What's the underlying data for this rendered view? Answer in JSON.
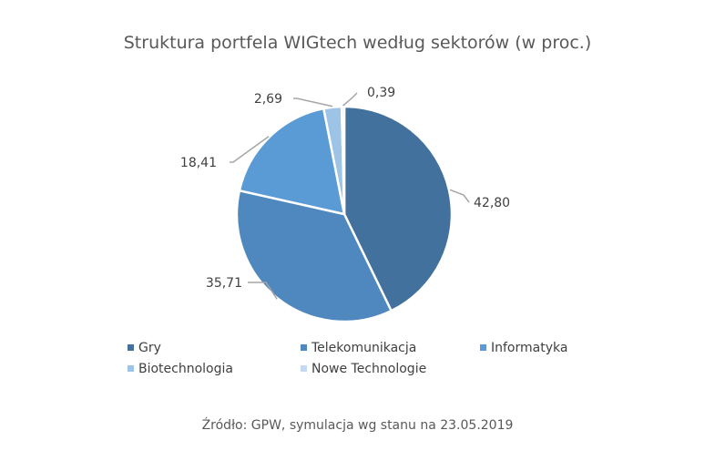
{
  "chart_data": {
    "type": "pie",
    "title": "Struktura portfela WIGtech według sektorów (w proc.)",
    "source": "Źródło: GPW, symulacja wg stanu na 23.05.2019",
    "legend_position": "bottom",
    "categories": [
      "Gry",
      "Telekomunikacja",
      "Informatyka",
      "Biotechnologia",
      "Nowe Technologie"
    ],
    "values": [
      42.8,
      35.71,
      18.41,
      2.69,
      0.39
    ],
    "labels": [
      "42,80",
      "35,71",
      "18,41",
      "2,69",
      "0,39"
    ],
    "colors": [
      "#41719c",
      "#4e88be",
      "#5b9bd5",
      "#9dc3e6",
      "#c5d9f1"
    ]
  }
}
